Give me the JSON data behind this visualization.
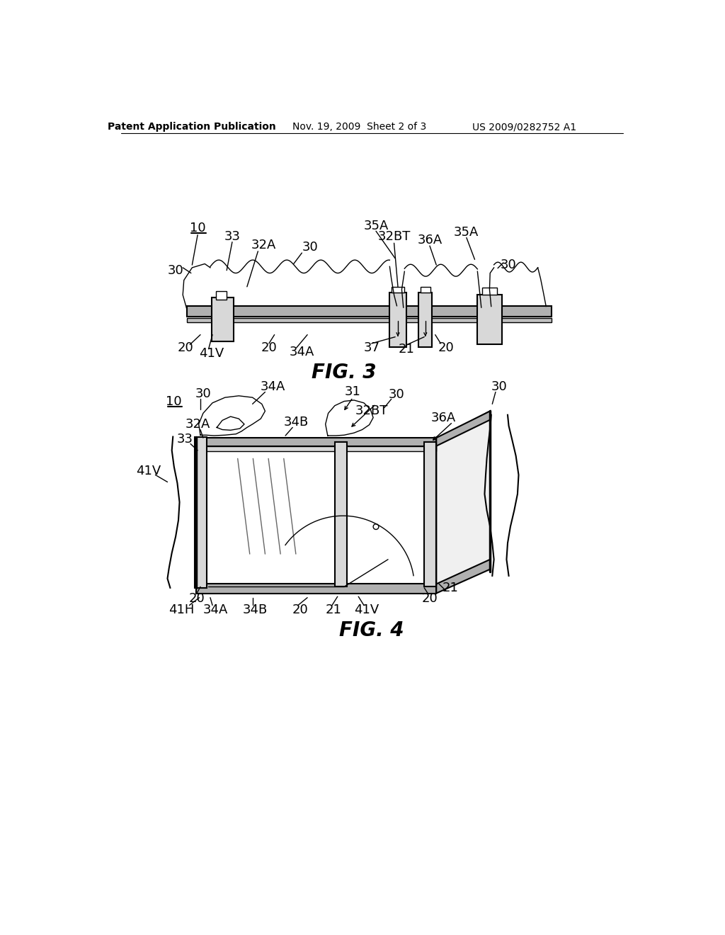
{
  "bg_color": "#ffffff",
  "line_color": "#000000",
  "header_left": "Patent Application Publication",
  "header_mid": "Nov. 19, 2009  Sheet 2 of 3",
  "header_right": "US 2009/0282752 A1",
  "fig3_caption": "FIG. 3",
  "fig4_caption": "FIG. 4",
  "font_family": "DejaVu Sans",
  "header_fontsize": 10,
  "caption_fontsize": 20,
  "label_fontsize": 12,
  "gray_track": "#b0b0b0",
  "gray_light": "#d8d8d8",
  "gray_med": "#c0c0c0"
}
